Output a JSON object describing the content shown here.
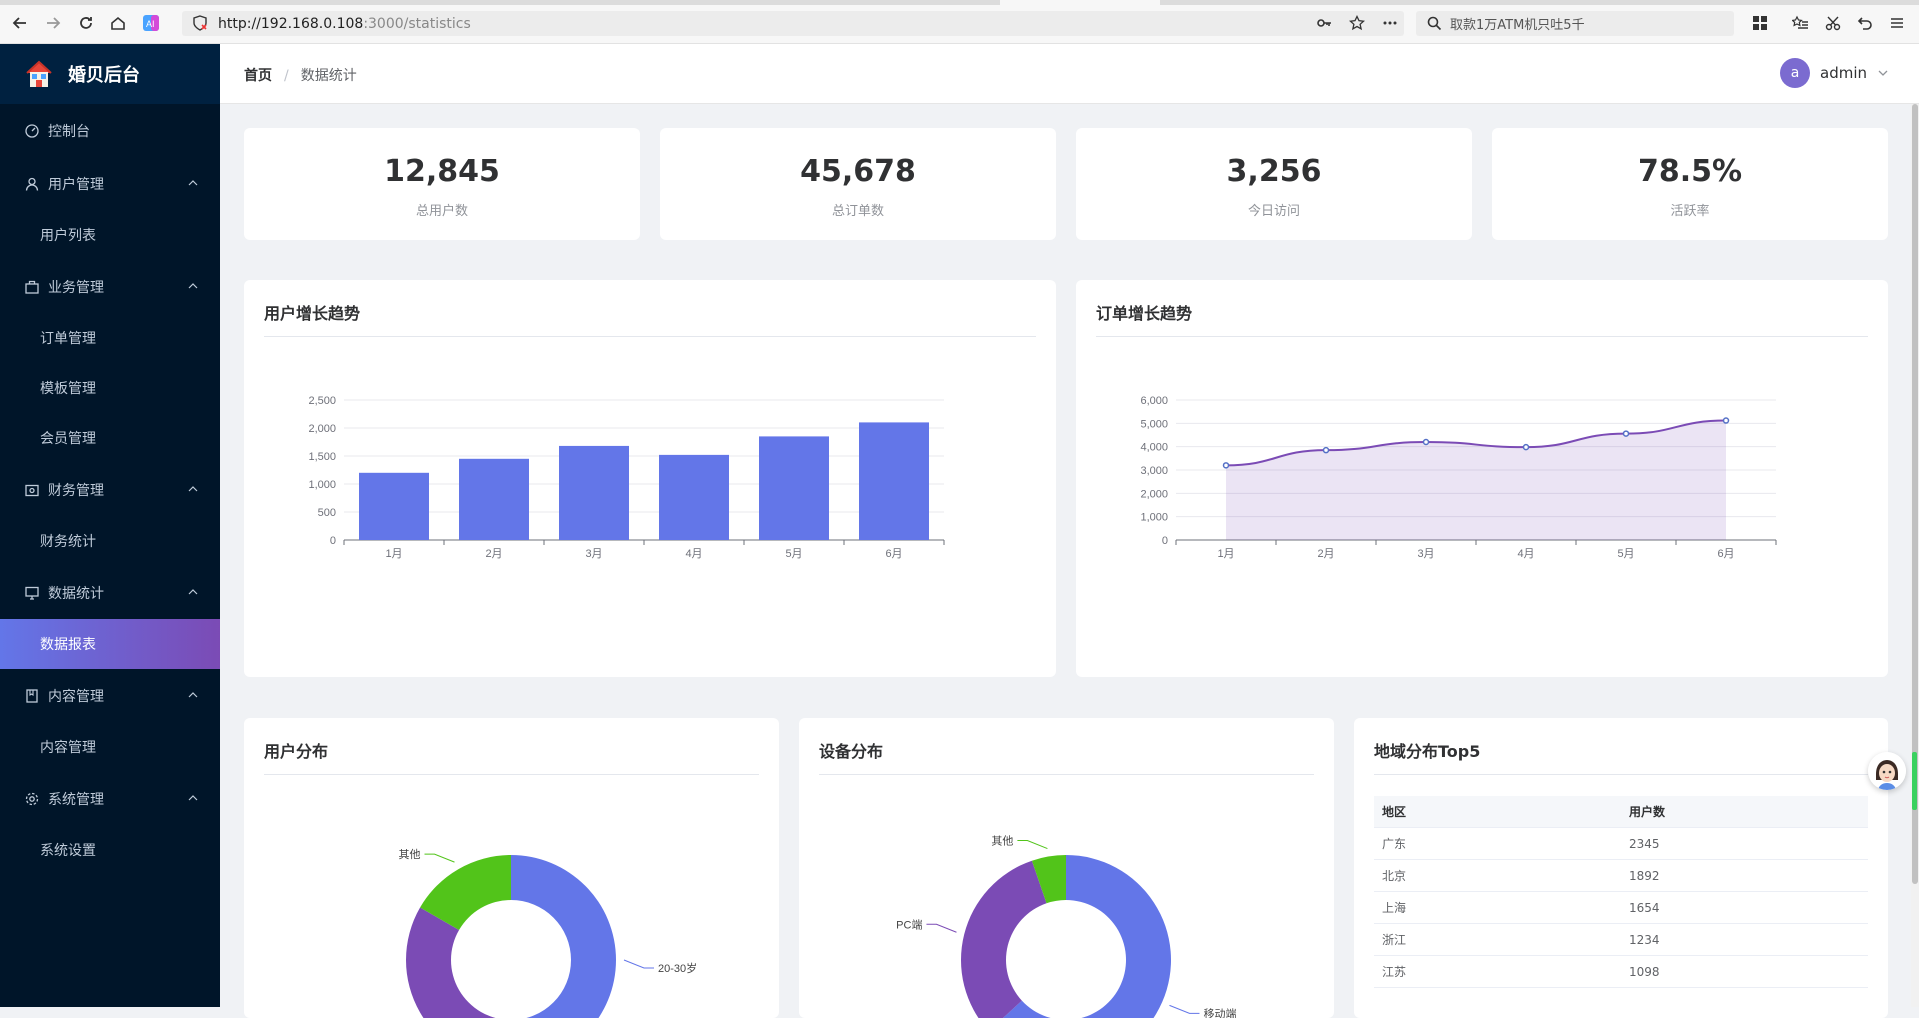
{
  "browser": {
    "url_host": "http://192.168.0.108",
    "url_path": ":3000/statistics",
    "search_text": "取款1万ATM机只吐5千"
  },
  "sidebar": {
    "logo_text": "婚贝后台",
    "items": [
      {
        "label": "控制台",
        "icon": "dashboard-icon"
      },
      {
        "label": "用户管理",
        "icon": "user-icon",
        "expanded": true,
        "children": [
          "用户列表"
        ]
      },
      {
        "label": "业务管理",
        "icon": "briefcase-icon",
        "expanded": true,
        "children": [
          "订单管理",
          "模板管理",
          "会员管理"
        ]
      },
      {
        "label": "财务管理",
        "icon": "wallet-icon",
        "expanded": true,
        "children": [
          "财务统计"
        ]
      },
      {
        "label": "数据统计",
        "icon": "monitor-icon",
        "expanded": true,
        "children": [
          "数据报表"
        ]
      },
      {
        "label": "内容管理",
        "icon": "book-icon",
        "expanded": true,
        "children": [
          "内容管理"
        ]
      },
      {
        "label": "系统管理",
        "icon": "gear-icon",
        "expanded": true,
        "children": [
          "系统设置"
        ]
      }
    ],
    "active_item": "数据报表"
  },
  "header": {
    "breadcrumb": [
      "首页",
      "数据统计"
    ],
    "breadcrumb_sep": "/",
    "user_initial": "a",
    "user_name": "admin"
  },
  "stats": [
    {
      "value": "12,845",
      "label": "总用户数"
    },
    {
      "value": "45,678",
      "label": "总订单数"
    },
    {
      "value": "3,256",
      "label": "今日访问"
    },
    {
      "value": "78.5%",
      "label": "活跃率"
    }
  ],
  "panels": {
    "user_growth_title": "用户增长趋势",
    "order_growth_title": "订单增长趋势",
    "user_dist_title": "用户分布",
    "device_dist_title": "设备分布",
    "region_title": "地域分布Top5"
  },
  "region_table": {
    "headers": [
      "地区",
      "用户数"
    ],
    "rows": [
      [
        "广东",
        "2345"
      ],
      [
        "北京",
        "1892"
      ],
      [
        "上海",
        "1654"
      ],
      [
        "浙江",
        "1234"
      ],
      [
        "江苏",
        "1098"
      ]
    ]
  },
  "colors": {
    "primary": "#6376e8",
    "purple": "#7b4bb5",
    "green": "#52c41a",
    "sidebar_bg": "#001529"
  },
  "chart_data": [
    {
      "type": "bar",
      "title": "用户增长趋势",
      "categories": [
        "1月",
        "2月",
        "3月",
        "4月",
        "5月",
        "6月"
      ],
      "values": [
        1200,
        1450,
        1680,
        1520,
        1850,
        2100
      ],
      "ylim": [
        0,
        2500
      ],
      "yticks": [
        "0",
        "500",
        "1,000",
        "1,500",
        "2,000",
        "2,500"
      ],
      "color": "#6376e8"
    },
    {
      "type": "area",
      "title": "订单增长趋势",
      "categories": [
        "1月",
        "2月",
        "3月",
        "4月",
        "5月",
        "6月"
      ],
      "values": [
        3200,
        3850,
        4200,
        3980,
        4560,
        5120
      ],
      "ylim": [
        0,
        6000
      ],
      "yticks": [
        "0",
        "1,000",
        "2,000",
        "3,000",
        "4,000",
        "5,000",
        "6,000"
      ],
      "color": "#7b4bb5"
    },
    {
      "type": "pie",
      "title": "用户分布",
      "slices": [
        {
          "label": "20-30岁",
          "value": 45,
          "color": "#6376e8"
        },
        {
          "label": "",
          "value": 30,
          "color": "#7b4bb5"
        },
        {
          "label": "其他",
          "value": 15,
          "color": "#52c41a"
        }
      ]
    },
    {
      "type": "pie",
      "title": "设备分布",
      "slices": [
        {
          "label": "移动端",
          "value": 60,
          "color": "#6376e8"
        },
        {
          "label": "PC端",
          "value": 30,
          "color": "#7b4bb5"
        },
        {
          "label": "其他",
          "value": 5,
          "color": "#52c41a"
        }
      ]
    }
  ]
}
